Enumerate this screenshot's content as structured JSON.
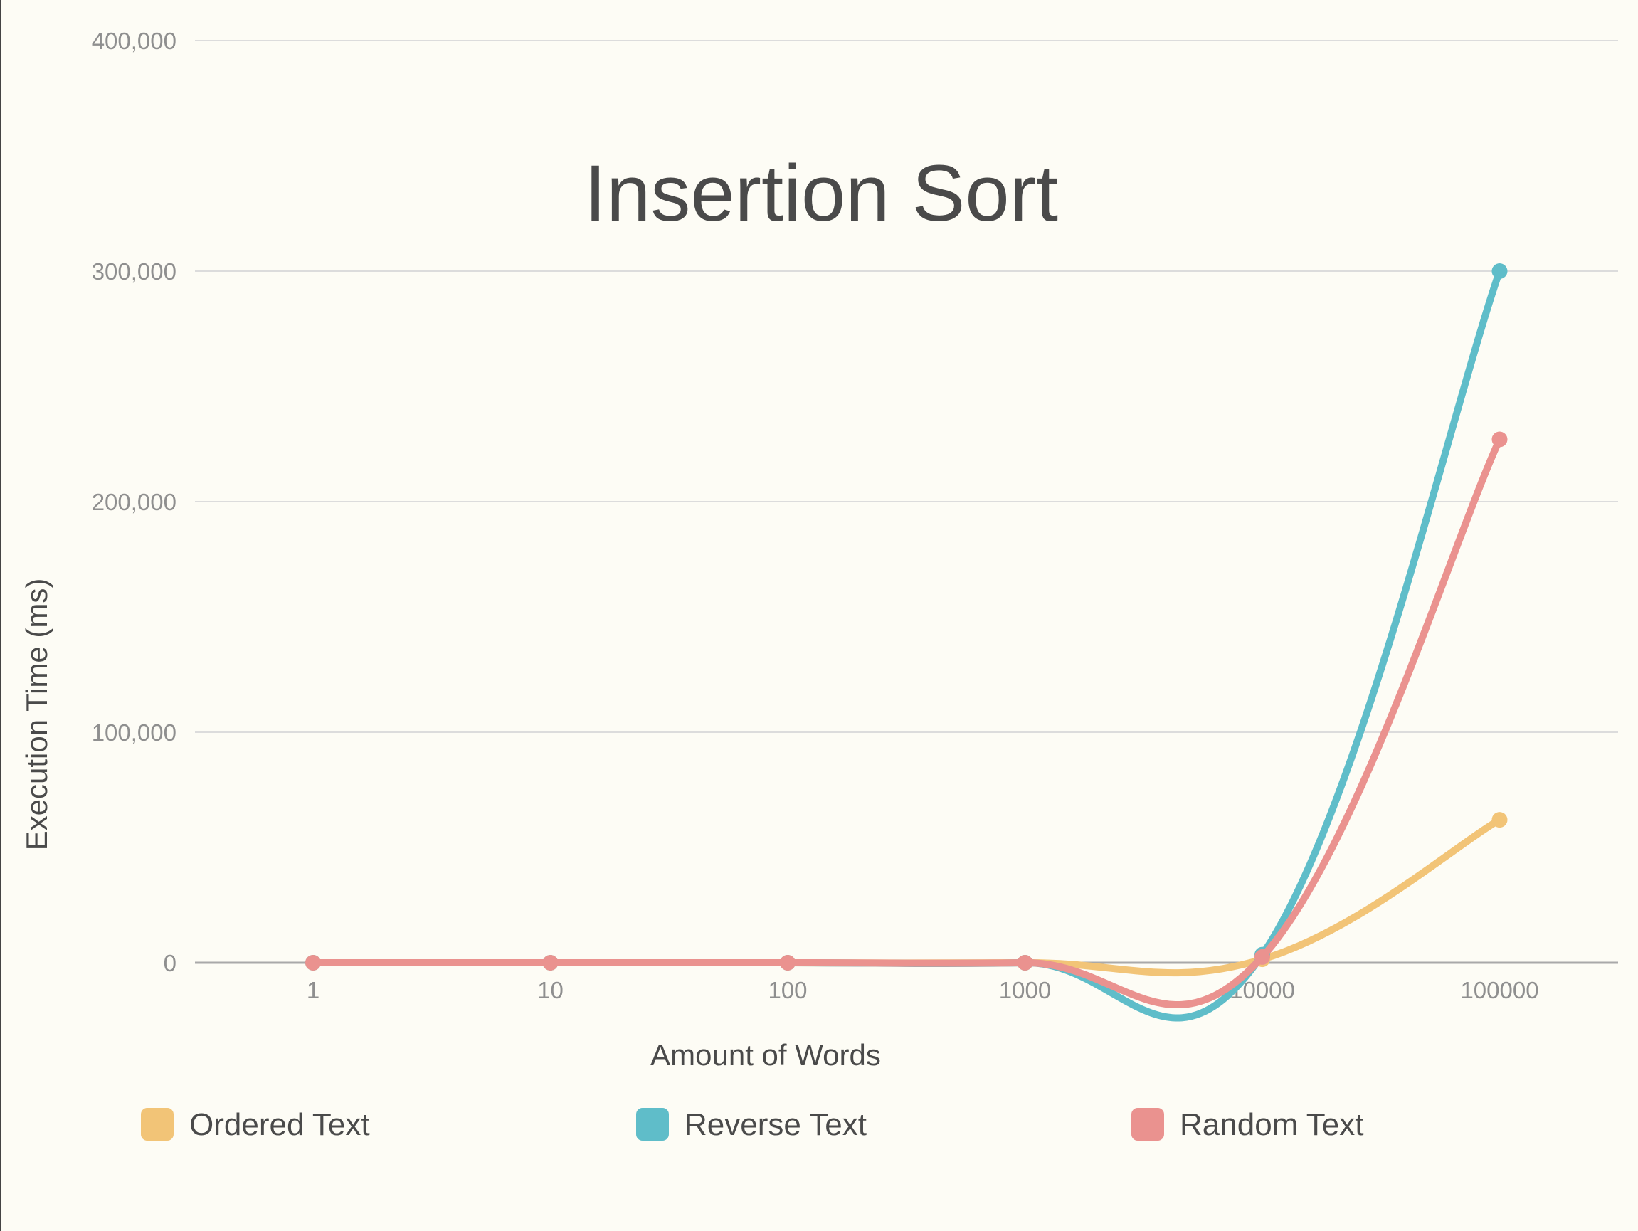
{
  "chart_data": {
    "type": "line",
    "title": "Insertion Sort",
    "xlabel": "Amount of Words",
    "ylabel": "Execution Time (ms)",
    "categories": [
      "1",
      "10",
      "100",
      "1000",
      "10000",
      "100000"
    ],
    "ylim": [
      0,
      400000
    ],
    "yticks": [
      0,
      100000,
      200000,
      300000,
      400000
    ],
    "ytick_labels": [
      "0",
      "100,000",
      "200,000",
      "300,000",
      "400,000"
    ],
    "grid": true,
    "legend": "bottom",
    "series": [
      {
        "name": "Ordered Text",
        "color": "#f2c477",
        "values": [
          0,
          0,
          0,
          0,
          1500,
          62000
        ]
      },
      {
        "name": "Reverse Text",
        "color": "#5fbdc9",
        "values": [
          0,
          0,
          0,
          0,
          3500,
          300000
        ]
      },
      {
        "name": "Random Text",
        "color": "#ea928f",
        "values": [
          0,
          0,
          0,
          0,
          2500,
          227000
        ]
      }
    ]
  }
}
